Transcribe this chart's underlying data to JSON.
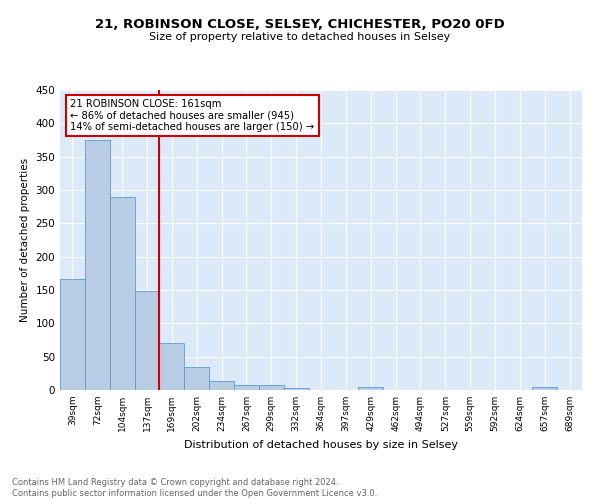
{
  "title": "21, ROBINSON CLOSE, SELSEY, CHICHESTER, PO20 0FD",
  "subtitle": "Size of property relative to detached houses in Selsey",
  "xlabel": "Distribution of detached houses by size in Selsey",
  "ylabel": "Number of detached properties",
  "categories": [
    "39sqm",
    "72sqm",
    "104sqm",
    "137sqm",
    "169sqm",
    "202sqm",
    "234sqm",
    "267sqm",
    "299sqm",
    "332sqm",
    "364sqm",
    "397sqm",
    "429sqm",
    "462sqm",
    "494sqm",
    "527sqm",
    "559sqm",
    "592sqm",
    "624sqm",
    "657sqm",
    "689sqm"
  ],
  "values": [
    167,
    375,
    290,
    148,
    70,
    35,
    14,
    8,
    7,
    3,
    0,
    0,
    4,
    0,
    0,
    0,
    0,
    0,
    0,
    4,
    0
  ],
  "bar_color": "#b8cce4",
  "bar_edge_color": "#5b9bd5",
  "vline_color": "#cc0000",
  "vline_x_index": 4,
  "annotation_line1": "21 ROBINSON CLOSE: 161sqm",
  "annotation_line2": "← 86% of detached houses are smaller (945)",
  "annotation_line3": "14% of semi-detached houses are larger (150) →",
  "annotation_box_color": "#cc0000",
  "ylim": [
    0,
    450
  ],
  "yticks": [
    0,
    50,
    100,
    150,
    200,
    250,
    300,
    350,
    400,
    450
  ],
  "footer_text": "Contains HM Land Registry data © Crown copyright and database right 2024.\nContains public sector information licensed under the Open Government Licence v3.0.",
  "plot_bg_color": "#dce9f8",
  "fig_bg_color": "#ffffff"
}
